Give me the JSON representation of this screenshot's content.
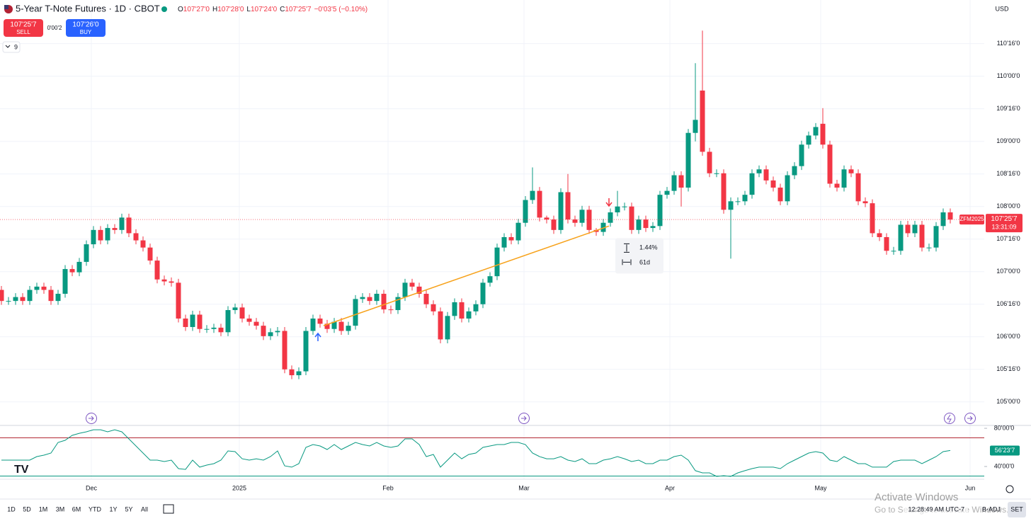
{
  "header": {
    "title": "5-Year T-Note Futures · 1D · CBOT",
    "ohlc": [
      {
        "label": "O",
        "value": "107'27'0"
      },
      {
        "label": "H",
        "value": "107'28'0"
      },
      {
        "label": "L",
        "value": "107'24'0"
      },
      {
        "label": "C",
        "value": "107'25'7"
      }
    ],
    "change": "−0'03'5 (−0.10%)",
    "sell": {
      "price": "107'25'7",
      "label": "SELL"
    },
    "spread": "0'00'2",
    "buy": {
      "price": "107'26'0",
      "label": "BUY"
    },
    "indicators": "9",
    "currency": "USD"
  },
  "footer": {
    "ranges": [
      "1D",
      "5D",
      "1M",
      "3M",
      "6M",
      "YTD",
      "1Y",
      "5Y",
      "All"
    ],
    "time": "12:28:49 AM UTC-7",
    "adjust": "B-ADJ",
    "settings": "SET"
  },
  "watermark": {
    "title": "Activate Windows",
    "text": "Go to Settings to activate Windows."
  },
  "chart_data": [
    {
      "type": "candlestick",
      "up_color": "#089981",
      "down_color": "#f23645",
      "open": [
        106.72,
        106.55,
        106.55,
        106.61,
        106.55,
        106.72,
        106.77,
        106.72,
        106.55,
        106.66,
        107.04,
        106.99,
        107.15,
        107.42,
        107.64,
        107.48,
        107.67,
        107.64,
        107.83,
        107.59,
        107.48,
        107.37,
        107.17,
        106.88,
        106.85,
        106.83,
        106.28,
        106.15,
        106.34,
        106.12,
        106.12,
        106.14,
        106.07,
        106.41,
        106.45,
        106.28,
        106.23,
        106.17,
        106.01,
        106.07,
        106.09,
        105.5,
        105.41,
        105.47,
        106.09,
        106.28,
        106.2,
        106.12,
        106.23,
        106.09,
        106.17,
        106.58,
        106.61,
        106.55,
        106.66,
        106.42,
        106.41,
        106.61,
        106.83,
        106.77,
        106.66,
        106.5,
        106.39,
        105.96,
        106.32,
        106.53,
        106.28,
        106.39,
        106.5,
        106.83,
        106.93,
        107.37,
        107.53,
        107.48,
        107.75,
        108.1,
        108.24,
        107.83,
        107.8,
        107.64,
        108.22,
        107.8,
        107.75,
        107.95,
        107.64,
        107.61,
        107.75,
        107.91,
        108.0,
        108.0,
        107.64,
        107.8,
        107.67,
        107.7,
        108.18,
        108.24,
        108.48,
        108.29,
        109.13,
        109.78,
        108.84,
        108.51,
        108.51,
        107.95,
        108.08,
        108.08,
        108.18,
        108.51,
        108.57,
        108.4,
        108.29,
        108.08,
        108.48,
        108.62,
        108.95,
        109.09,
        109.27,
        108.95,
        108.35,
        108.29,
        108.57,
        108.51,
        108.08,
        108.05,
        107.59,
        107.53,
        107.32,
        107.32,
        107.72,
        107.59,
        107.72,
        107.37,
        107.37,
        107.7,
        107.91
      ],
      "high": [
        106.78,
        106.61,
        106.67,
        106.67,
        106.78,
        106.83,
        106.83,
        106.78,
        106.72,
        107.1,
        107.1,
        107.21,
        107.48,
        107.7,
        107.7,
        107.73,
        107.73,
        107.89,
        107.89,
        107.65,
        107.54,
        107.43,
        107.23,
        106.94,
        106.91,
        106.89,
        106.34,
        106.4,
        106.4,
        106.18,
        106.2,
        106.2,
        106.47,
        106.51,
        106.51,
        106.34,
        106.29,
        106.23,
        106.13,
        106.15,
        106.15,
        105.56,
        105.53,
        106.15,
        106.34,
        106.34,
        106.26,
        106.29,
        106.29,
        106.23,
        106.64,
        106.67,
        106.67,
        106.72,
        106.72,
        106.48,
        106.67,
        106.89,
        106.89,
        106.83,
        106.72,
        106.56,
        106.45,
        106.38,
        106.59,
        106.59,
        106.45,
        106.56,
        106.89,
        106.99,
        107.43,
        107.59,
        107.59,
        107.81,
        108.16,
        108.6,
        108.3,
        107.86,
        107.86,
        108.28,
        108.5,
        107.86,
        108.01,
        108.01,
        107.67,
        107.81,
        107.97,
        108.24,
        108.06,
        108.06,
        107.86,
        107.86,
        107.76,
        108.24,
        108.3,
        108.54,
        108.54,
        109.19,
        110.2,
        110.7,
        108.9,
        108.57,
        108.57,
        108.14,
        108.14,
        108.24,
        108.57,
        108.63,
        108.63,
        108.46,
        108.35,
        108.54,
        108.68,
        109.01,
        109.15,
        109.28,
        109.51,
        109.01,
        108.41,
        108.63,
        108.63,
        108.57,
        108.14,
        108.11,
        107.65,
        107.59,
        107.38,
        107.78,
        107.78,
        107.78,
        107.78,
        107.43,
        107.76,
        107.97,
        107.97
      ],
      "low": [
        106.49,
        106.49,
        106.49,
        106.49,
        106.49,
        106.66,
        106.66,
        106.49,
        106.49,
        106.6,
        106.93,
        106.93,
        107.09,
        107.36,
        107.42,
        107.42,
        107.58,
        107.58,
        107.53,
        107.42,
        107.31,
        107.11,
        106.82,
        106.79,
        106.77,
        106.22,
        106.09,
        106.09,
        106.06,
        106.06,
        106.06,
        106.01,
        106.01,
        106.35,
        106.22,
        106.17,
        106.11,
        105.95,
        105.95,
        106.01,
        105.44,
        105.35,
        105.35,
        105.41,
        106.03,
        106.14,
        106.06,
        106.06,
        106.03,
        106.03,
        106.11,
        106.52,
        106.49,
        106.49,
        106.36,
        106.35,
        106.35,
        106.55,
        106.71,
        106.6,
        106.44,
        106.33,
        105.9,
        105.9,
        106.26,
        106.22,
        106.22,
        106.33,
        106.44,
        106.77,
        106.87,
        107.31,
        107.42,
        107.42,
        107.69,
        108.04,
        107.77,
        107.74,
        107.58,
        107.58,
        107.74,
        107.69,
        107.69,
        107.58,
        107.55,
        107.55,
        107.69,
        107.85,
        107.94,
        107.58,
        107.58,
        107.61,
        107.61,
        107.64,
        108.12,
        108.18,
        108.0,
        108.23,
        109.0,
        108.78,
        108.45,
        108.45,
        107.89,
        107.2,
        108.02,
        108.02,
        108.12,
        108.45,
        108.34,
        108.23,
        108.02,
        108.02,
        108.42,
        108.56,
        108.89,
        109.03,
        108.89,
        108.29,
        108.23,
        108.23,
        108.45,
        108.02,
        107.99,
        107.53,
        107.47,
        107.26,
        107.26,
        107.26,
        107.53,
        107.53,
        107.31,
        107.31,
        107.31,
        107.64,
        107.74
      ],
      "close": [
        106.55,
        106.55,
        106.61,
        106.55,
        106.72,
        106.77,
        106.72,
        106.55,
        106.66,
        107.04,
        106.99,
        107.15,
        107.42,
        107.64,
        107.48,
        107.67,
        107.64,
        107.83,
        107.59,
        107.48,
        107.37,
        107.17,
        106.88,
        106.85,
        106.83,
        106.28,
        106.15,
        106.34,
        106.12,
        106.12,
        106.14,
        106.07,
        106.41,
        106.45,
        106.28,
        106.23,
        106.17,
        106.01,
        106.07,
        106.09,
        105.5,
        105.41,
        105.47,
        106.09,
        106.28,
        106.2,
        106.12,
        106.23,
        106.09,
        106.17,
        106.58,
        106.61,
        106.55,
        106.66,
        106.42,
        106.41,
        106.61,
        106.83,
        106.77,
        106.66,
        106.5,
        106.39,
        105.96,
        106.32,
        106.53,
        106.28,
        106.39,
        106.5,
        106.83,
        106.93,
        107.37,
        107.53,
        107.48,
        107.75,
        108.1,
        108.24,
        107.83,
        107.8,
        107.64,
        108.22,
        107.8,
        107.75,
        107.95,
        107.64,
        107.61,
        107.75,
        107.91,
        108.0,
        108.0,
        107.64,
        107.8,
        107.67,
        107.7,
        108.18,
        108.24,
        108.48,
        108.29,
        109.13,
        109.33,
        108.84,
        108.51,
        108.51,
        107.95,
        108.08,
        108.08,
        108.18,
        108.51,
        108.57,
        108.4,
        108.29,
        108.08,
        108.48,
        108.62,
        108.95,
        109.09,
        109.22,
        108.95,
        108.35,
        108.29,
        108.57,
        108.51,
        108.08,
        108.05,
        107.59,
        107.53,
        107.32,
        107.32,
        107.72,
        107.59,
        107.72,
        107.37,
        107.37,
        107.7,
        107.91,
        107.8
      ],
      "xlim": [
        -0.2,
        138.8
      ],
      "xticks": [
        {
          "value": 12.7,
          "label": "Dec"
        },
        {
          "value": 33.6,
          "label": "2025"
        },
        {
          "value": 54.6,
          "label": "Feb"
        },
        {
          "value": 73.8,
          "label": "Mar"
        },
        {
          "value": 94.4,
          "label": "Apr"
        },
        {
          "value": 115.7,
          "label": "May"
        },
        {
          "value": 136.8,
          "label": "Jun"
        }
      ],
      "ylim": [
        104.65,
        111.17
      ],
      "yticks": [
        {
          "value": 105.0,
          "label": "105'00'0"
        },
        {
          "value": 105.5,
          "label": "105'16'0"
        },
        {
          "value": 106.0,
          "label": "106'00'0"
        },
        {
          "value": 106.5,
          "label": "106'16'0"
        },
        {
          "value": 107.0,
          "label": "107'00'0"
        },
        {
          "value": 107.5,
          "label": "107'16'0"
        },
        {
          "value": 108.0,
          "label": "108'00'0"
        },
        {
          "value": 108.5,
          "label": "108'16'0"
        },
        {
          "value": 109.0,
          "label": "109'00'0"
        },
        {
          "value": 109.5,
          "label": "109'16'0"
        },
        {
          "value": 110.0,
          "label": "110'00'0"
        },
        {
          "value": 110.5,
          "label": "110'16'0"
        }
      ],
      "grid": true,
      "symbol": "ZFM2025",
      "last_price_label": "107'25'7",
      "countdown": "13:31:09",
      "trend_line": {
        "x": [
          45.5,
          85.8
        ],
        "y": [
          106.17,
          107.7
        ],
        "color": "#f7a21b"
      },
      "measure": {
        "change": "1.44%",
        "bars": "61d"
      }
    },
    {
      "type": "line",
      "color": "#089981",
      "values": [
        46.7,
        46.7,
        46.7,
        46.7,
        46.7,
        50.4,
        51.9,
        54.1,
        65.2,
        67.4,
        72.6,
        74.8,
        76.3,
        78.5,
        78.5,
        76.3,
        78.5,
        76.3,
        68.9,
        61.5,
        54.1,
        46.7,
        46.7,
        45.2,
        46.7,
        37.8,
        37.0,
        46.7,
        39.3,
        41.5,
        43.0,
        46.7,
        56.3,
        55.6,
        48.1,
        46.7,
        48.1,
        46.7,
        50.4,
        56.3,
        40.7,
        39.3,
        43.0,
        60.0,
        63.0,
        61.5,
        57.8,
        63.0,
        57.8,
        61.5,
        65.2,
        63.0,
        61.5,
        65.2,
        61.5,
        60.0,
        61.5,
        68.9,
        68.9,
        63.0,
        50.4,
        52.6,
        39.3,
        46.7,
        54.1,
        48.1,
        52.6,
        54.1,
        60.0,
        61.5,
        63.0,
        63.0,
        65.2,
        65.2,
        63.0,
        54.1,
        50.4,
        48.1,
        48.1,
        50.4,
        46.7,
        45.2,
        48.1,
        43.0,
        43.0,
        46.7,
        48.1,
        50.4,
        48.1,
        45.2,
        46.7,
        43.0,
        43.0,
        46.7,
        46.7,
        50.4,
        51.9,
        46.7,
        35.6,
        33.3,
        33.3,
        29.6,
        30.4,
        29.6,
        33.3,
        35.6,
        37.8,
        39.3,
        39.3,
        39.3,
        37.8,
        43.0,
        46.7,
        50.4,
        54.1,
        55.6,
        54.1,
        46.7,
        45.2,
        50.4,
        46.7,
        43.0,
        43.0,
        39.3,
        39.3,
        39.3,
        45.2,
        46.7,
        46.7,
        46.7,
        43.0,
        46.7,
        50.4,
        55.6,
        56.72
      ],
      "ylim": [
        27.4,
        83.0
      ],
      "yticks": [
        {
          "value": 80,
          "label": "80'00'0"
        },
        {
          "value": 40,
          "label": "40'00'0"
        }
      ],
      "levels": [
        {
          "value": 70,
          "color": "#b22833"
        },
        {
          "value": 30,
          "color": "#089981"
        }
      ],
      "last_value_label": "56'23'7"
    }
  ]
}
